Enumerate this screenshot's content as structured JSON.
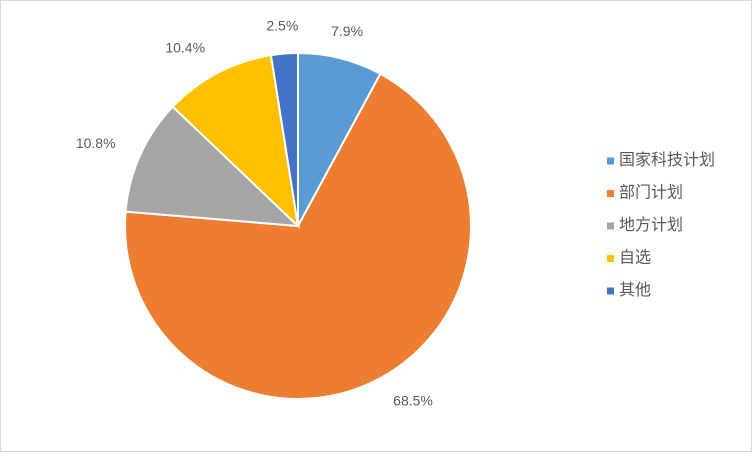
{
  "chart_data": {
    "type": "pie",
    "categories": [
      "国家科技计划",
      "部门计划",
      "地方计划",
      "自选",
      "其他"
    ],
    "values": [
      7.9,
      68.5,
      10.8,
      10.4,
      2.5
    ],
    "value_labels": [
      "7.9%",
      "68.5%",
      "10.8%",
      "10.4%",
      "2.5%"
    ],
    "colors": [
      "#5b9bd5",
      "#ed7d31",
      "#a5a5a5",
      "#ffc000",
      "#4472c4"
    ],
    "legend": "right"
  }
}
